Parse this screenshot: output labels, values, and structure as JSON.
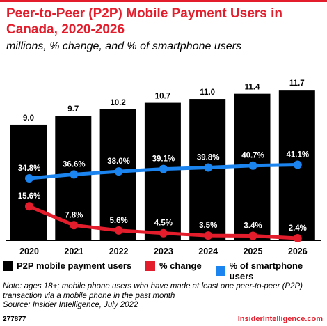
{
  "header": {
    "title": "Peer-to-Peer (P2P) Mobile Payment Users in Canada, 2020-2026",
    "subtitle": "millions, % change, and % of smartphone users"
  },
  "chart_data": {
    "type": "bar",
    "title": "Peer-to-Peer (P2P) Mobile Payment Users in Canada, 2020-2026",
    "subtitle": "millions, % change, and % of smartphone users",
    "categories": [
      "2020",
      "2021",
      "2022",
      "2023",
      "2024",
      "2025",
      "2026"
    ],
    "series": [
      {
        "name": "P2P mobile payment users",
        "type": "bar",
        "color": "#000000",
        "values": [
          9.0,
          9.7,
          10.2,
          10.7,
          11.0,
          11.4,
          11.7
        ],
        "labels": [
          "9.0",
          "9.7",
          "10.2",
          "10.7",
          "11.0",
          "11.4",
          "11.7"
        ]
      },
      {
        "name": "% change",
        "type": "line",
        "color": "#e31d2b",
        "values": [
          15.6,
          7.8,
          5.6,
          4.5,
          3.5,
          3.4,
          2.4
        ],
        "labels": [
          "15.6%",
          "7.8%",
          "5.6%",
          "4.5%",
          "3.5%",
          "3.4%",
          "2.4%"
        ]
      },
      {
        "name": "% of smartphone users",
        "type": "line",
        "color": "#1b84ef",
        "values": [
          34.8,
          36.6,
          38.0,
          39.1,
          39.8,
          40.7,
          41.1
        ],
        "labels": [
          "34.8%",
          "36.6%",
          "38.0%",
          "39.1%",
          "39.8%",
          "40.7%",
          "41.1%"
        ]
      }
    ],
    "legend_position": "bottom",
    "grid": false
  },
  "legend": {
    "items": [
      {
        "label": "P2P mobile payment users",
        "color": "#000000"
      },
      {
        "label": "% change",
        "color": "#e31d2b"
      },
      {
        "label": "% of smartphone users",
        "color": "#1b84ef"
      }
    ]
  },
  "notes": {
    "note": "Note: ages 18+; mobile phone users who have made at least one peer-to-peer (P2P) transaction via a mobile phone in the past month",
    "source": "Source: Insider Intelligence, July 2022"
  },
  "footer": {
    "id": "277877",
    "brand": "InsiderIntelligence.com"
  }
}
